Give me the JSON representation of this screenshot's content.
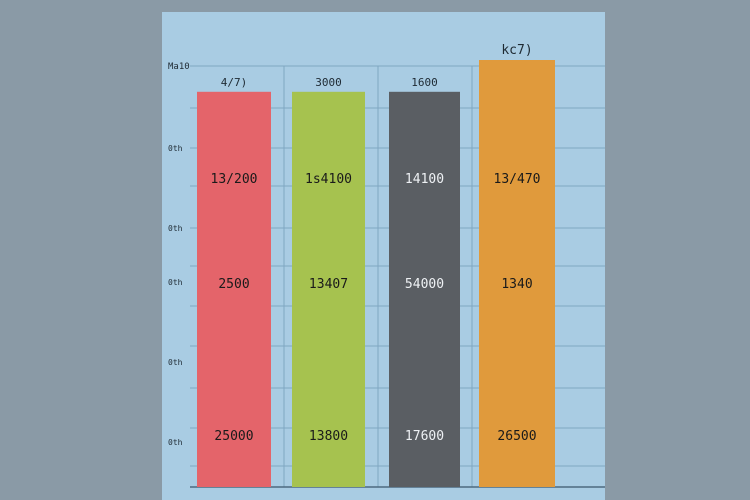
{
  "chart_data": {
    "type": "bar",
    "title": "",
    "xlabel": "",
    "ylabel": "",
    "y_tick_labels": [
      "Ma10",
      "0th",
      "0th",
      "0th",
      "0th",
      "0th"
    ],
    "categories": [
      "",
      "",
      "",
      ""
    ],
    "top_labels": [
      "4/7)",
      "3000",
      "1600",
      "kc7)"
    ],
    "values": [
      0.87,
      0.87,
      0.87,
      0.94
    ],
    "colors": [
      "#e4646a",
      "#a6c24f",
      "#5a5e63",
      "#e09a3c"
    ],
    "segment_labels": [
      [
        "13/200",
        "2500",
        "25000"
      ],
      [
        "1s4100",
        "13407",
        "13800"
      ],
      [
        "14100",
        "54000",
        "17600"
      ],
      [
        "13/470",
        "1340",
        "26500"
      ]
    ],
    "grid": true,
    "background": "#a9cce3",
    "page_background": "#8a9aa6"
  }
}
